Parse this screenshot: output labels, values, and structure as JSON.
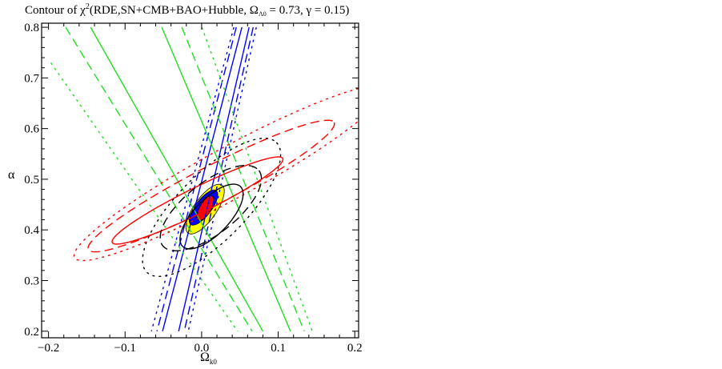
{
  "chart_data": {
    "type": "contour",
    "title": {
      "prefix": "Contour of  χ",
      "sup": "2",
      "mid": "(RDE,SN+CMB+BAO+Hubble, Ω",
      "sub": "Λ0",
      "suffix": " = 0.73, γ = 0.15)"
    },
    "xlabel": {
      "main": "Ω",
      "sub": "k0"
    },
    "ylabel": "α",
    "xlim": [
      -0.209,
      0.205
    ],
    "ylim": [
      0.187,
      0.808
    ],
    "xticks": [
      -0.2,
      -0.1,
      0.0,
      0.1,
      0.2
    ],
    "xtick_labels": [
      "−0.2",
      "−0.1",
      "0.0",
      "0.1",
      "0.2"
    ],
    "yticks": [
      0.2,
      0.3,
      0.4,
      0.5,
      0.6,
      0.7,
      0.8
    ],
    "ytick_labels": [
      "0.2",
      "0.3",
      "0.4",
      "0.5",
      "0.6",
      "0.7",
      "0.8"
    ],
    "minor_tick_step": 0.02,
    "colors": {
      "sn": "#ff0000",
      "bao": "#000000",
      "cmb": "#0000ff",
      "hubble": "#22dd22",
      "combined_3sigma": "#ffff00",
      "combined_2sigma": "#0000ff",
      "combined_1sigma": "#ff0000"
    },
    "filled_regions": [
      {
        "name": "combined-3sigma",
        "color": "#ffff00",
        "c": [
          0.0045,
          0.441
        ],
        "a": [
          0.022,
          0.0474
        ],
        "b": [
          0.012,
          -0.0127
        ]
      },
      {
        "name": "combined-2sigma",
        "color": "#0000ff",
        "c": [
          0.0024,
          0.444
        ],
        "a": [
          0.0167,
          0.0332
        ],
        "b": [
          0.0083,
          -0.0095
        ]
      },
      {
        "name": "combined-1sigma",
        "color": "#ff0000",
        "c": [
          0.005,
          0.443
        ],
        "a": [
          0.0089,
          0.0237
        ],
        "b": [
          0.0063,
          -0.0054
        ]
      }
    ],
    "ellipse_contours": [
      {
        "name": "sn-1sigma",
        "color": "#ff0000",
        "style": "solid",
        "c": [
          -0.0054,
          0.458
        ],
        "a": [
          0.1114,
          0.083
        ],
        "b": [
          0.0074,
          -0.0227
        ]
      },
      {
        "name": "sn-2sigma",
        "color": "#ff0000",
        "style": "dashed",
        "c": [
          0.0125,
          0.4865
        ],
        "a": [
          0.1605,
          0.1255
        ],
        "b": [
          0.0115,
          -0.0337
        ]
      },
      {
        "name": "sn-3sigma",
        "color": "#ff0000",
        "style": "dotted",
        "c": [
          0.0365,
          0.512
        ],
        "a": [
          0.2025,
          0.167
        ],
        "b": [
          0.0169,
          -0.0436
        ]
      },
      {
        "name": "bao-1sigma",
        "color": "#000000",
        "style": "solid",
        "c": [
          0.013,
          0.4264
        ],
        "a": [
          0.0377,
          0.0592
        ],
        "b": [
          0.0166,
          -0.024
        ]
      },
      {
        "name": "bao-2sigma",
        "color": "#000000",
        "style": "dashed",
        "c": [
          0.012,
          0.443
        ],
        "a": [
          0.0628,
          0.0742
        ],
        "b": [
          0.0206,
          -0.0398
        ]
      },
      {
        "name": "bao-3sigma",
        "color": "#000000",
        "style": "dotted",
        "c": [
          0.013,
          0.4445
        ],
        "a": [
          0.0847,
          0.128
        ],
        "b": [
          0.031,
          -0.047
        ]
      }
    ],
    "line_contours": [
      {
        "name": "cmb-1sigma-left",
        "color": "#0000ff",
        "style": "solid",
        "points": [
          [
            0.0526,
            0.8
          ],
          [
            -0.051,
            0.2
          ]
        ]
      },
      {
        "name": "cmb-1sigma-right",
        "color": "#0000ff",
        "style": "solid",
        "points": [
          [
            0.062,
            0.8
          ],
          [
            -0.03,
            0.2
          ]
        ]
      },
      {
        "name": "cmb-2sigma-left",
        "color": "#0000ff",
        "style": "dashed",
        "points": [
          [
            0.0453,
            0.8
          ],
          [
            -0.0583,
            0.2
          ]
        ]
      },
      {
        "name": "cmb-2sigma-right",
        "color": "#0000ff",
        "style": "dashed",
        "points": [
          [
            0.0673,
            0.8
          ],
          [
            -0.0227,
            0.2
          ]
        ]
      },
      {
        "name": "cmb-3sigma-left",
        "color": "#0000ff",
        "style": "dotted",
        "points": [
          [
            0.0421,
            0.8
          ],
          [
            -0.0656,
            0.2
          ]
        ]
      },
      {
        "name": "cmb-3sigma-right",
        "color": "#0000ff",
        "style": "dotted",
        "points": [
          [
            0.0714,
            0.8
          ],
          [
            -0.0175,
            0.2
          ]
        ]
      },
      {
        "name": "hubble-1sigma-left",
        "color": "#22dd22",
        "style": "solid",
        "points": [
          [
            -0.145,
            0.8
          ],
          [
            0.08,
            0.2
          ]
        ]
      },
      {
        "name": "hubble-1sigma-right",
        "color": "#22dd22",
        "style": "solid",
        "points": [
          [
            -0.052,
            0.8
          ],
          [
            0.116,
            0.2
          ]
        ]
      },
      {
        "name": "hubble-2sigma-left",
        "color": "#22dd22",
        "style": "dashed",
        "points": [
          [
            -0.1775,
            0.8
          ],
          [
            0.066,
            0.2
          ]
        ]
      },
      {
        "name": "hubble-2sigma-right",
        "color": "#22dd22",
        "style": "dashed",
        "points": [
          [
            -0.0258,
            0.8
          ],
          [
            0.134,
            0.2
          ]
        ]
      },
      {
        "name": "hubble-3sigma-left",
        "color": "#22dd22",
        "style": "dotted",
        "points": [
          [
            -0.197,
            0.73
          ],
          [
            0.047,
            0.2
          ]
        ]
      },
      {
        "name": "hubble-3sigma-right",
        "color": "#22dd22",
        "style": "dotted",
        "points": [
          [
            0.0003,
            0.8
          ],
          [
            0.1446,
            0.2
          ]
        ]
      }
    ]
  }
}
